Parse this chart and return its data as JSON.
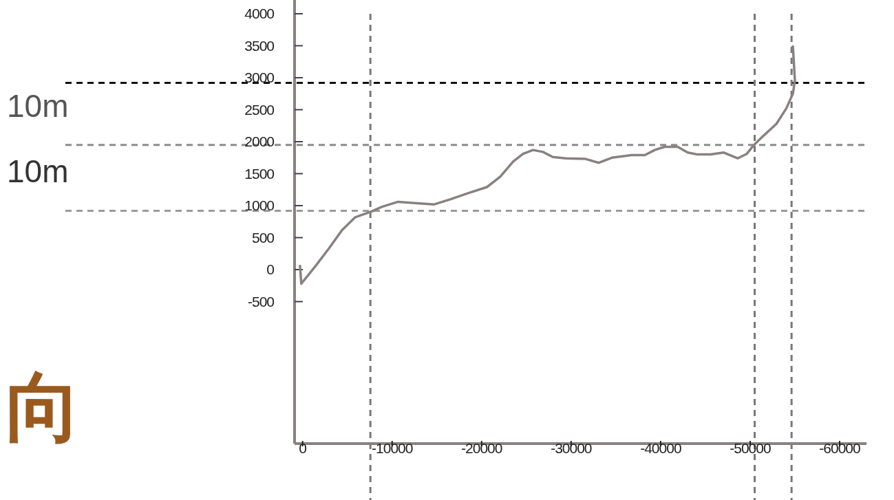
{
  "chart_data": {
    "type": "line",
    "xlim": [
      900,
      -63000
    ],
    "ylim": [
      -2720,
      4000
    ],
    "xticks": [
      0,
      -10000,
      -20000,
      -30000,
      -40000,
      -50000,
      -60000
    ],
    "yticks": [
      -500,
      0,
      500,
      1000,
      1500,
      2000,
      2500,
      3000,
      3500,
      4000
    ],
    "grid": false,
    "marker": "none",
    "line_style": "solid",
    "series": [
      {
        "color": "#8a8080",
        "x": [
          290,
          150,
          -1470,
          -2940,
          -4410,
          -5880,
          -7720,
          -8820,
          -10660,
          -12500,
          -14710,
          -16540,
          -18380,
          -20590,
          -22060,
          -23530,
          -24630,
          -25740,
          -26840,
          -27940,
          -29410,
          -31620,
          -33090,
          -34560,
          -36770,
          -38240,
          -39340,
          -40440,
          -41910,
          -43020,
          -44120,
          -45590,
          -47060,
          -48600,
          -49630,
          -50370,
          -51470,
          -52940,
          -54040,
          -54780,
          -55000,
          -54780
        ],
        "values": [
          60,
          -220,
          60,
          330,
          620,
          820,
          910,
          980,
          1060,
          1040,
          1020,
          1100,
          1190,
          1290,
          1450,
          1690,
          1810,
          1870,
          1840,
          1760,
          1740,
          1730,
          1670,
          1750,
          1790,
          1790,
          1870,
          1920,
          1920,
          1830,
          1800,
          1800,
          1830,
          1740,
          1810,
          1940,
          2090,
          2280,
          2520,
          2750,
          2960,
          3490
        ]
      }
    ],
    "ref_lines": [
      {
        "axis": "y",
        "value": 2920,
        "color": "#111111",
        "line_style": "dashed"
      },
      {
        "axis": "y",
        "value": 1950,
        "color": "#8c8c8c",
        "line_style": "dashed"
      },
      {
        "axis": "y",
        "value": 920,
        "color": "#9a9a9a",
        "line_style": "dashed"
      },
      {
        "axis": "x",
        "value": -7570,
        "color": "#777777",
        "line_style": "dashed"
      },
      {
        "axis": "x",
        "value": -50510,
        "color": "#777777",
        "line_style": "dashed"
      },
      {
        "axis": "x",
        "value": -54630,
        "color": "#777777",
        "line_style": "dashed"
      }
    ],
    "annotations": [
      "10m",
      "10m",
      "向"
    ]
  }
}
